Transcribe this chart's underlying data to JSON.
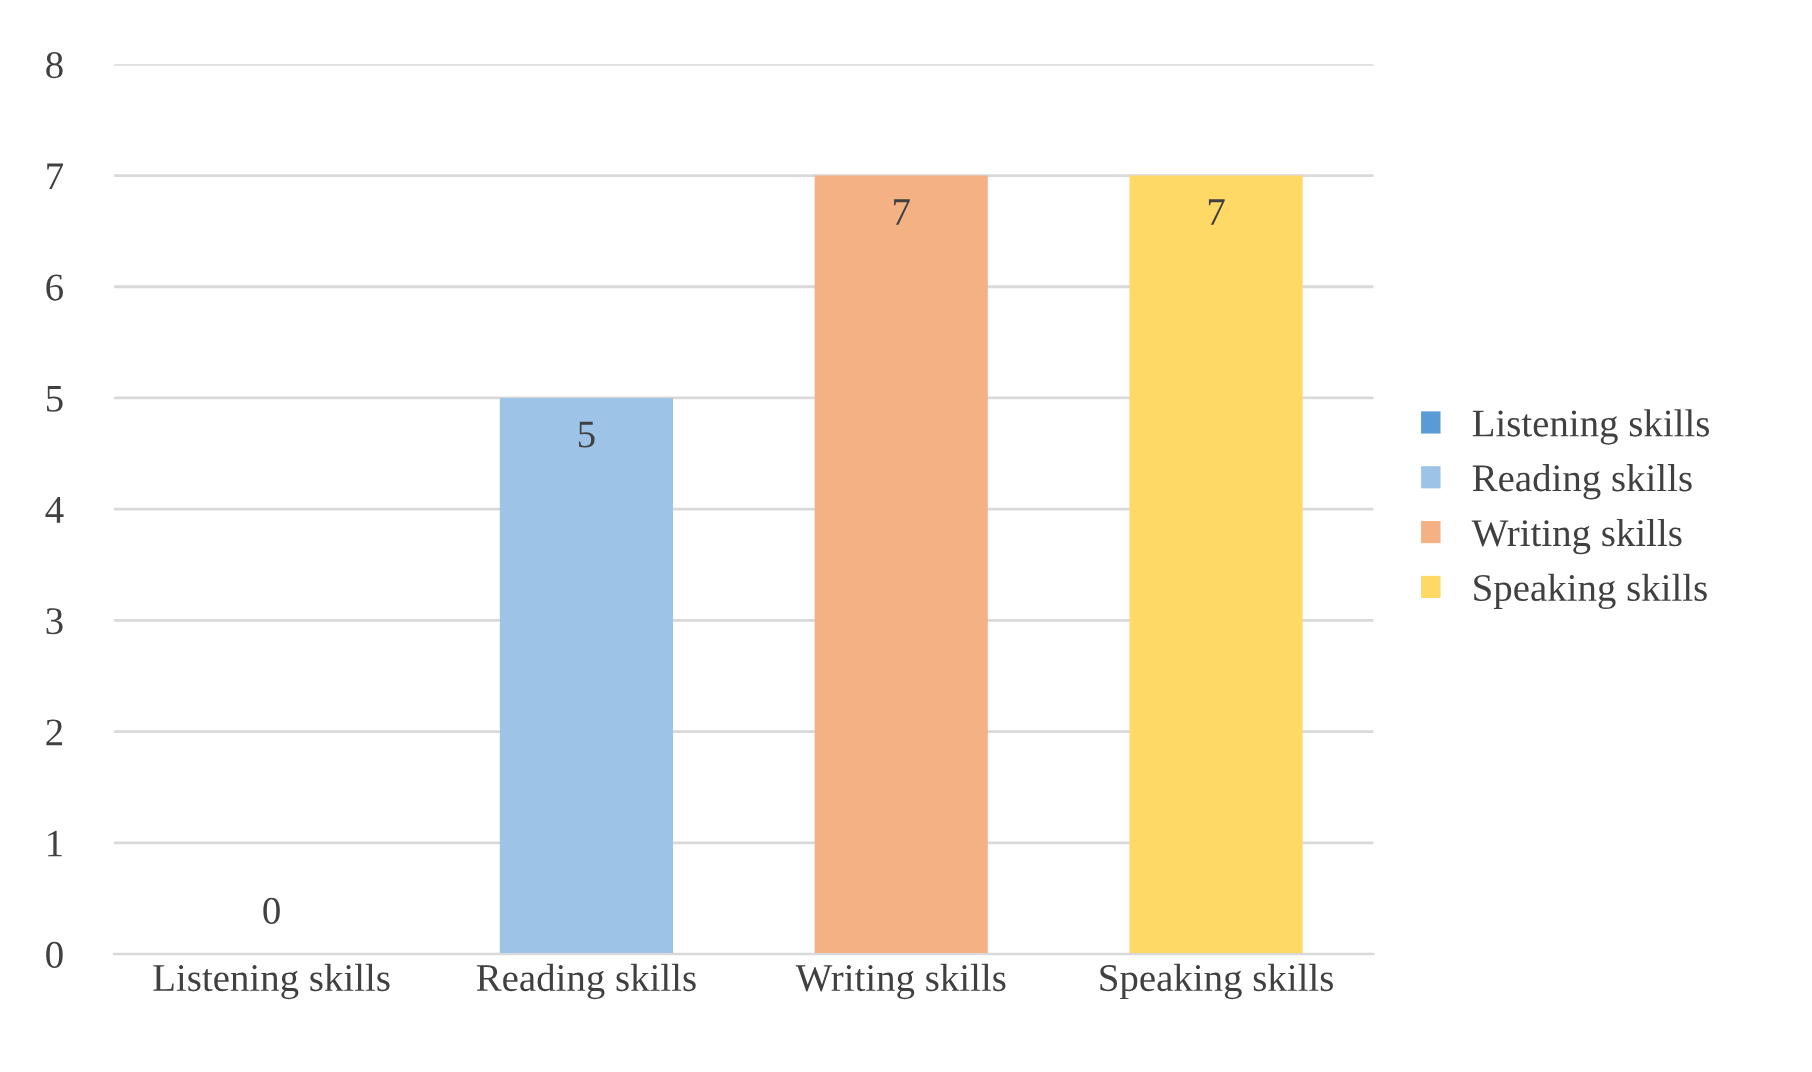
{
  "chart_data": {
    "type": "bar",
    "categories": [
      "Listening skills",
      "Reading skills",
      "Writing skills",
      "Speaking skills"
    ],
    "series": [
      {
        "name": "Listening skills",
        "color": "#5b9bd5",
        "values": [
          0,
          null,
          null,
          null
        ]
      },
      {
        "name": "Reading skills",
        "color": "#9dc3e6",
        "values": [
          null,
          5,
          null,
          null
        ]
      },
      {
        "name": "Writing skills",
        "color": "#f4b183",
        "values": [
          null,
          null,
          7,
          null
        ]
      },
      {
        "name": "Speaking skills",
        "color": "#ffd966",
        "values": [
          null,
          null,
          null,
          7
        ]
      }
    ],
    "ylim": [
      0,
      8
    ],
    "yticks": [
      0,
      1,
      2,
      3,
      4,
      5,
      6,
      7,
      8
    ],
    "grid": "y",
    "legend": "right",
    "data_labels": true
  }
}
